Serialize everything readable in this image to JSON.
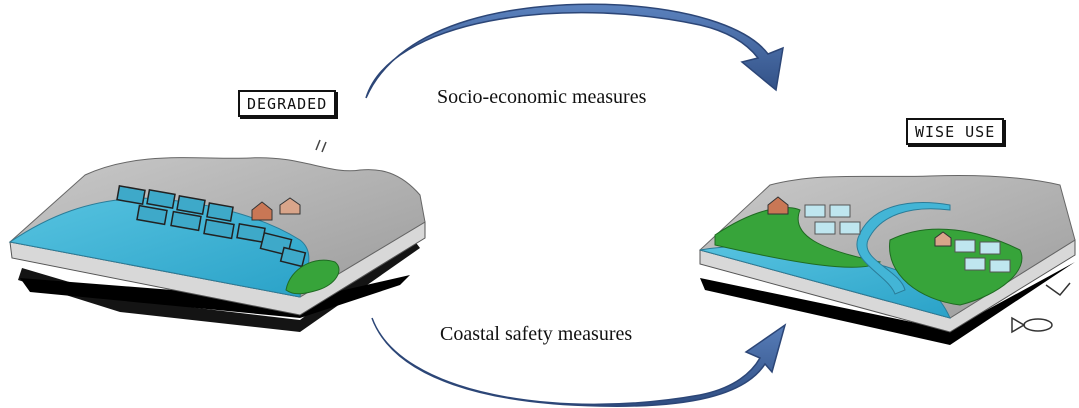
{
  "labels": {
    "degraded": "DEGRADED",
    "wise_use": "WISE USE"
  },
  "arrows": {
    "top": "Socio-economic measures",
    "bottom": "Coastal safety measures"
  },
  "colors": {
    "arrow": "#3d5e97",
    "arrow_light": "#5b82be",
    "water": "#43b5d6",
    "land_gray": "#bdbdbd",
    "mangrove": "#37a43a",
    "base_shadow": "#000000"
  }
}
